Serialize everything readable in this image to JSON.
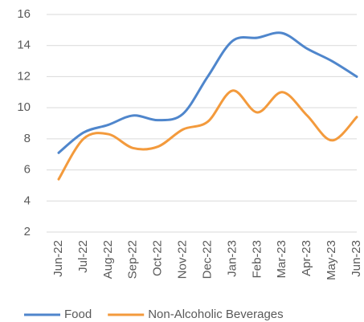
{
  "chart_data": {
    "type": "line",
    "categories": [
      "Jun-22",
      "Jul-22",
      "Aug-22",
      "Sep-22",
      "Oct-22",
      "Nov-22",
      "Dec-22",
      "Jan-23",
      "Feb-23",
      "Mar-23",
      "Apr-23",
      "May-23",
      "Jun-23"
    ],
    "series": [
      {
        "name": "Food",
        "color": "#4f86cc",
        "values": [
          7.1,
          8.4,
          8.9,
          9.5,
          9.2,
          9.6,
          12.0,
          14.3,
          14.5,
          14.8,
          13.8,
          13.0,
          12.0
        ]
      },
      {
        "name": "Non-Alcoholic Beverages",
        "color": "#f39a3c",
        "values": [
          5.4,
          8.0,
          8.3,
          7.4,
          7.5,
          8.6,
          9.1,
          11.1,
          9.7,
          11.0,
          9.5,
          7.9,
          9.4
        ]
      }
    ],
    "ylim": [
      2,
      16
    ],
    "yticks": [
      2,
      4,
      6,
      8,
      10,
      12,
      14,
      16
    ],
    "grid": true,
    "smooth": true,
    "legend": "bottom"
  }
}
